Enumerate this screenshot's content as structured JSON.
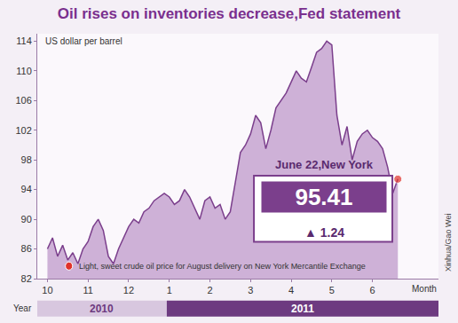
{
  "chart_data": {
    "type": "line",
    "title": "Oil rises on inventories decrease,Fed statement",
    "y_label": "US dollar per barrel",
    "x_label": "Month",
    "year_label": "Year",
    "years": [
      {
        "label": "2010",
        "start": "10"
      },
      {
        "label": "2011",
        "start": "1"
      }
    ],
    "categories": [
      "10",
      null,
      null,
      null,
      null,
      null,
      null,
      null,
      "11",
      null,
      null,
      null,
      null,
      null,
      null,
      null,
      "12",
      null,
      null,
      null,
      null,
      null,
      null,
      null,
      "1",
      null,
      null,
      null,
      null,
      null,
      null,
      null,
      "2",
      null,
      null,
      null,
      null,
      null,
      null,
      null,
      "3",
      null,
      null,
      null,
      null,
      null,
      null,
      null,
      "4",
      null,
      null,
      null,
      null,
      null,
      null,
      null,
      "5",
      null,
      null,
      null,
      null,
      null,
      null,
      null,
      "6",
      null,
      null,
      null,
      null,
      null
    ],
    "values": [
      86,
      87.5,
      85,
      86.5,
      84.5,
      85.5,
      84,
      86,
      87,
      89,
      90,
      88.5,
      85,
      84,
      86,
      87.5,
      89,
      90,
      89.5,
      91,
      91.5,
      92.5,
      93,
      93.5,
      93,
      92,
      92.5,
      94,
      93,
      91.5,
      90,
      92.5,
      93,
      91.5,
      92,
      90,
      91,
      95,
      99,
      100,
      101.5,
      104,
      103,
      99.5,
      102,
      105,
      106,
      107,
      108.5,
      110,
      109,
      108.5,
      110.5,
      112.5,
      113,
      114,
      113.5,
      104,
      100,
      102.5,
      98,
      100.5,
      101.5,
      102,
      101,
      100.5,
      99.5,
      97,
      93.5,
      95.41
    ],
    "color": "#7b3f8c",
    "ylim": [
      82,
      115
    ],
    "yticks": [
      82,
      86,
      90,
      94,
      98,
      102,
      106,
      110,
      114
    ],
    "grid": false,
    "callout": {
      "date_label": "June 22,New York",
      "last_price": "95.41",
      "change": "▲ 1.24"
    },
    "note": "Light, sweet crude oil price for August delivery on New York Mercantile Exchange",
    "credit": "Xinhua/Gao Wei"
  }
}
